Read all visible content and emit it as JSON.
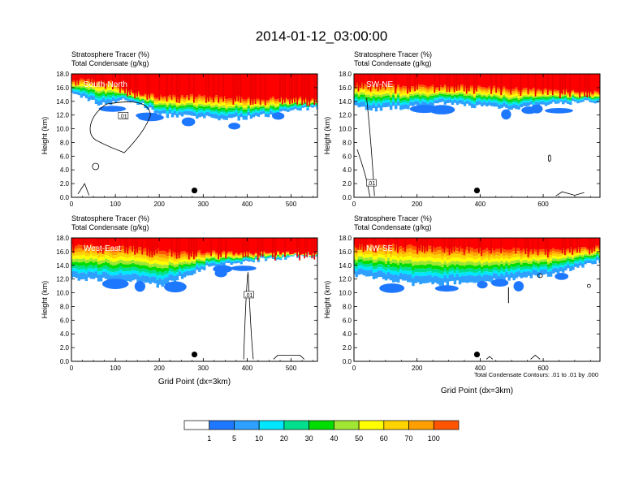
{
  "title": "2014-01-12_03:00:00",
  "colors": {
    "levels": [
      "#ffffff",
      "#1e78ff",
      "#2ea0ff",
      "#00e6ff",
      "#00e08c",
      "#00dd00",
      "#a0e632",
      "#ffff00",
      "#ffd200",
      "#ffa000",
      "#ff5500",
      "#ff0000"
    ],
    "contour": "#000000"
  },
  "legend": {
    "labels": [
      "1",
      "5",
      "10",
      "20",
      "30",
      "40",
      "50",
      "60",
      "70",
      "100"
    ]
  },
  "footnote": "Total Condensate Contours: .01 to .01 by .000",
  "chart_data": [
    {
      "type": "heatmap",
      "title_line1": "Stratosphere Tracer   (%)",
      "title_line2": "Total Condensate   (g/kg)",
      "panel_label": "South-North",
      "ylabel": "Height (km)",
      "xlabel": "",
      "xlim": [
        0,
        560
      ],
      "ylim": [
        0,
        18
      ],
      "xticks": [
        "0",
        "100",
        "200",
        "300",
        "400",
        "500"
      ],
      "yticks": [
        "0.0",
        "2.0",
        "4.0",
        "6.0",
        "8.0",
        "10.0",
        "12.0",
        "14.0",
        "16.0",
        "18.0"
      ],
      "contour_label": ".01",
      "marker": {
        "x": 280,
        "y": 1.0
      },
      "tracer_profile": {
        "x": [
          0,
          30,
          60,
          90,
          110,
          130,
          150,
          170,
          200,
          250,
          300,
          350,
          400,
          450,
          500,
          560
        ],
        "top_of_100pct": [
          17.2,
          17.1,
          17.0,
          16.8,
          16.2,
          15.5,
          15.3,
          15.0,
          14.8,
          14.8,
          14.7,
          14.6,
          14.5,
          14.4,
          14.4,
          14.3
        ],
        "base_of_1pct": [
          15.0,
          14.6,
          13.6,
          13.8,
          14.2,
          14.0,
          13.8,
          13.2,
          12.0,
          11.8,
          11.6,
          11.4,
          11.6,
          12.0,
          12.6,
          13.0
        ]
      }
    },
    {
      "type": "heatmap",
      "title_line1": "Stratosphere Tracer   (%)",
      "title_line2": "Total Condensate   (g/kg)",
      "panel_label": "SW-NE",
      "ylabel": "Height (km)",
      "xlabel": "",
      "xlim": [
        0,
        780
      ],
      "ylim": [
        0,
        18
      ],
      "xticks": [
        "0",
        "200",
        "400",
        "600"
      ],
      "yticks": [
        "0.0",
        "2.0",
        "4.0",
        "6.0",
        "8.0",
        "10.0",
        "12.0",
        "14.0",
        "16.0",
        "18.0"
      ],
      "contour_label": ".01",
      "marker": {
        "x": 390,
        "y": 1.0
      },
      "tracer_profile": {
        "x": [
          0,
          60,
          120,
          200,
          280,
          360,
          440,
          520,
          600,
          680,
          780
        ],
        "top_of_100pct": [
          16.5,
          16.4,
          16.2,
          16.2,
          16.4,
          16.1,
          16.0,
          15.8,
          15.6,
          15.5,
          15.3
        ],
        "base_of_1pct": [
          13.4,
          12.8,
          13.0,
          13.2,
          13.6,
          13.4,
          13.2,
          13.0,
          13.4,
          13.8,
          14.0
        ]
      }
    },
    {
      "type": "heatmap",
      "title_line1": "Stratosphere Tracer   (%)",
      "title_line2": "Total Condensate   (g/kg)",
      "panel_label": "West-East",
      "ylabel": "Height (km)",
      "xlabel": "Grid Point (dx=3km)",
      "xlim": [
        0,
        560
      ],
      "ylim": [
        0,
        18
      ],
      "xticks": [
        "0",
        "100",
        "200",
        "300",
        "400",
        "500"
      ],
      "yticks": [
        "0.0",
        "2.0",
        "4.0",
        "6.0",
        "8.0",
        "10.0",
        "12.0",
        "14.0",
        "16.0",
        "18.0"
      ],
      "contour_label": ".01",
      "marker": {
        "x": 280,
        "y": 1.0
      },
      "tracer_profile": {
        "x": [
          0,
          50,
          100,
          150,
          200,
          250,
          300,
          350,
          400,
          450,
          500,
          560
        ],
        "top_of_100pct": [
          16.8,
          16.8,
          16.7,
          16.5,
          16.2,
          16.0,
          15.9,
          15.9,
          15.8,
          15.8,
          15.8,
          15.8
        ],
        "base_of_1pct": [
          12.0,
          12.0,
          11.8,
          11.6,
          11.0,
          12.2,
          13.6,
          14.0,
          14.6,
          15.0,
          15.2,
          15.4
        ]
      }
    },
    {
      "type": "heatmap",
      "title_line1": "Stratosphere Tracer   (%)",
      "title_line2": "Total Condensate   (g/kg)",
      "panel_label": "NW-SE",
      "ylabel": "Height (km)",
      "xlabel": "Grid Point (dx=3km)",
      "xlim": [
        0,
        780
      ],
      "ylim": [
        0,
        18
      ],
      "xticks": [
        "0",
        "200",
        "400",
        "600"
      ],
      "yticks": [
        "0.0",
        "2.0",
        "4.0",
        "6.0",
        "8.0",
        "10.0",
        "12.0",
        "14.0",
        "16.0",
        "18.0"
      ],
      "contour_label": "",
      "marker": {
        "x": 390,
        "y": 1.0
      },
      "tracer_profile": {
        "x": [
          0,
          100,
          200,
          300,
          400,
          500,
          600,
          700,
          780
        ],
        "top_of_100pct": [
          16.8,
          16.9,
          16.8,
          16.6,
          16.4,
          16.3,
          16.2,
          16.4,
          16.6
        ],
        "base_of_1pct": [
          12.6,
          12.0,
          11.2,
          11.4,
          11.6,
          12.0,
          12.4,
          13.6,
          14.6
        ]
      }
    }
  ]
}
